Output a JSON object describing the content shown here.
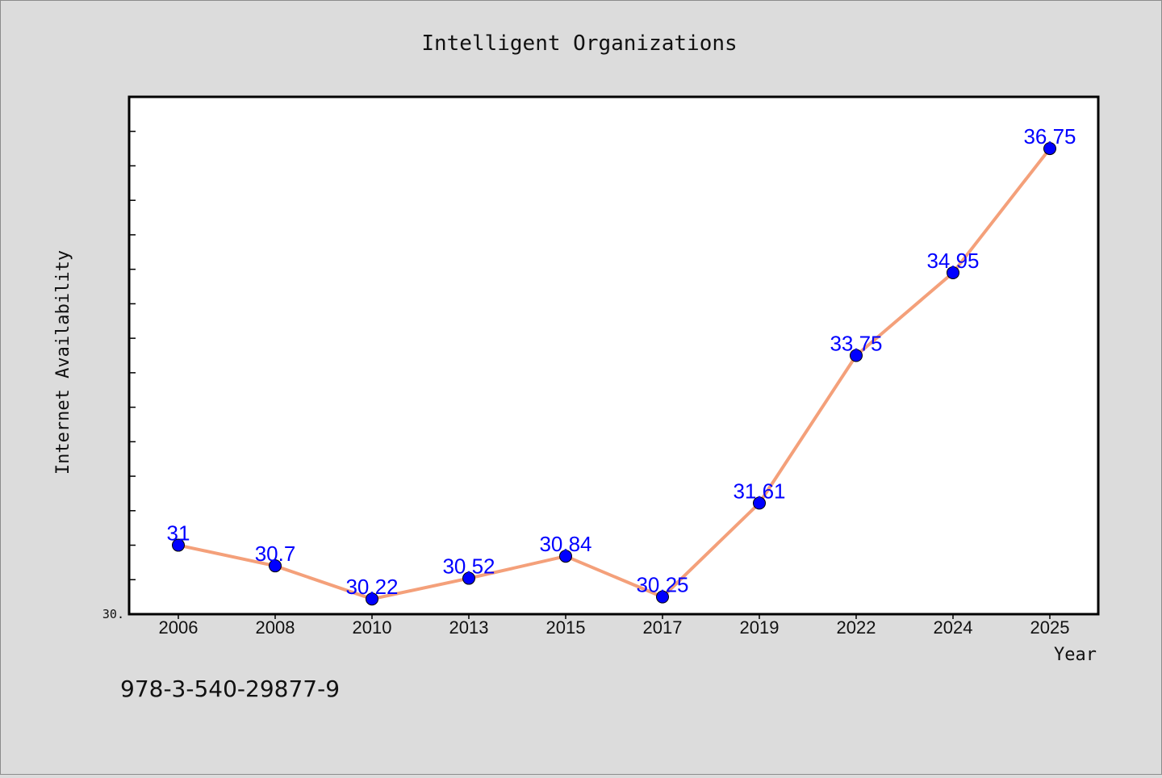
{
  "chart_data": {
    "type": "line",
    "title": "Intelligent Organizations",
    "xlabel": "Year",
    "ylabel": "Internet Availability",
    "categories": [
      "2006",
      "2008",
      "2010",
      "2013",
      "2015",
      "2017",
      "2019",
      "2022",
      "2024",
      "2025"
    ],
    "values": [
      31,
      30.7,
      30.22,
      30.52,
      30.84,
      30.25,
      31.61,
      33.75,
      34.95,
      36.75
    ],
    "data_labels": [
      "31",
      "30.7",
      "30.22",
      "30.52",
      "30.84",
      "30.25",
      "31.61",
      "33.75",
      "34.95",
      "36.75"
    ],
    "y_tick_label": "30.",
    "ylim": [
      30,
      37.5
    ],
    "grid": false,
    "line_color": "#f4a07a",
    "marker_color": "#0000ff",
    "label_color": "#0000ff"
  },
  "footer": {
    "text": "978-3-540-29877-9"
  }
}
